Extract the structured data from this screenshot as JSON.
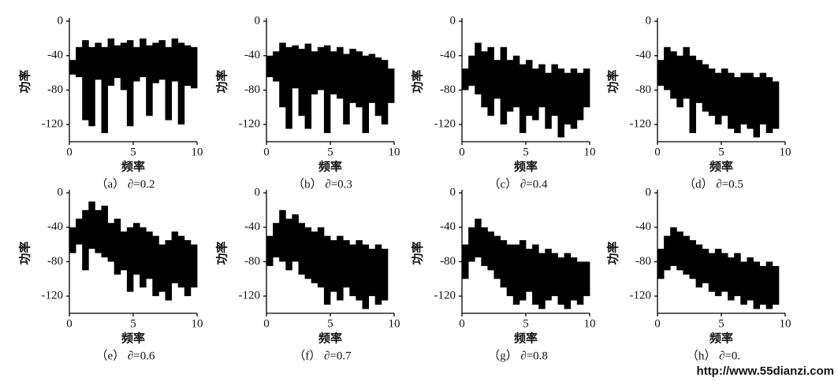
{
  "chart_data": [
    {
      "type": "band",
      "caption": "（a） ∂=0.2",
      "xlabel": "频率",
      "ylabel": "功率",
      "color": "#000000",
      "x": [
        0,
        0.5,
        1,
        1.5,
        2,
        2.5,
        3,
        3.5,
        4,
        4.5,
        5,
        5.5,
        6,
        6.5,
        7,
        7.5,
        8,
        8.5,
        9,
        9.5
      ],
      "high": [
        -45,
        -30,
        -22,
        -30,
        -25,
        -30,
        -20,
        -28,
        -25,
        -22,
        -30,
        -20,
        -28,
        -25,
        -22,
        -30,
        -20,
        -25,
        -28,
        -30
      ],
      "low": [
        -62,
        -65,
        -115,
        -122,
        -68,
        -130,
        -75,
        -66,
        -80,
        -122,
        -70,
        -65,
        -110,
        -72,
        -68,
        -115,
        -70,
        -120,
        -75,
        -78
      ],
      "xlim": [
        0,
        10
      ],
      "ylim": [
        -140,
        0
      ],
      "xticks": [
        0,
        5,
        10
      ],
      "yticks": [
        0,
        -40,
        -80,
        -120
      ]
    },
    {
      "type": "band",
      "caption": "（b） ∂=0.3",
      "xlabel": "频率",
      "ylabel": "功率",
      "color": "#000000",
      "x": [
        0,
        0.5,
        1,
        1.5,
        2,
        2.5,
        3,
        3.5,
        4,
        4.5,
        5,
        5.5,
        6,
        6.5,
        7,
        7.5,
        8,
        8.5,
        9,
        9.5
      ],
      "high": [
        -40,
        -35,
        -25,
        -30,
        -28,
        -32,
        -26,
        -35,
        -30,
        -28,
        -35,
        -30,
        -38,
        -32,
        -35,
        -40,
        -38,
        -42,
        -45,
        -55
      ],
      "low": [
        -65,
        -70,
        -100,
        -125,
        -78,
        -110,
        -125,
        -85,
        -80,
        -130,
        -85,
        -90,
        -120,
        -95,
        -100,
        -130,
        -95,
        -110,
        -120,
        -95
      ],
      "xlim": [
        0,
        10
      ],
      "ylim": [
        -140,
        0
      ],
      "xticks": [
        0,
        5,
        10
      ],
      "yticks": [
        0,
        -40,
        -80,
        -120
      ]
    },
    {
      "type": "band",
      "caption": "（c） ∂=0.4",
      "xlabel": "频率",
      "ylabel": "功率",
      "color": "#000000",
      "x": [
        0,
        0.5,
        1,
        1.5,
        2,
        2.5,
        3,
        3.5,
        4,
        4.5,
        5,
        5.5,
        6,
        6.5,
        7,
        7.5,
        8,
        8.5,
        9,
        9.5
      ],
      "high": [
        -55,
        -40,
        -25,
        -35,
        -30,
        -45,
        -30,
        -45,
        -40,
        -50,
        -45,
        -55,
        -50,
        -60,
        -50,
        -55,
        -60,
        -55,
        -60,
        -55
      ],
      "low": [
        -80,
        -75,
        -85,
        -100,
        -110,
        -90,
        -120,
        -105,
        -100,
        -130,
        -110,
        -115,
        -100,
        -125,
        -110,
        -135,
        -120,
        -125,
        -115,
        -100
      ],
      "xlim": [
        0,
        10
      ],
      "ylim": [
        -140,
        0
      ],
      "xticks": [
        0,
        5,
        10
      ],
      "yticks": [
        0,
        -40,
        -80,
        -120
      ]
    },
    {
      "type": "band",
      "caption": "（d） ∂=0.5",
      "xlabel": "频率",
      "ylabel": "功率",
      "color": "#000000",
      "x": [
        0,
        0.5,
        1,
        1.5,
        2,
        2.5,
        3,
        3.5,
        4,
        4.5,
        5,
        5.5,
        6,
        6.5,
        7,
        7.5,
        8,
        8.5,
        9
      ],
      "high": [
        -45,
        -30,
        -35,
        -40,
        -30,
        -40,
        -45,
        -50,
        -55,
        -60,
        -55,
        -60,
        -65,
        -60,
        -60,
        -65,
        -60,
        -65,
        -70
      ],
      "low": [
        -75,
        -80,
        -90,
        -100,
        -90,
        -130,
        -95,
        -105,
        -110,
        -120,
        -110,
        -125,
        -130,
        -120,
        -125,
        -135,
        -120,
        -130,
        -125
      ],
      "xlim": [
        0,
        10
      ],
      "ylim": [
        -140,
        0
      ],
      "xticks": [
        0,
        5,
        10
      ],
      "yticks": [
        0,
        -40,
        -80,
        -120
      ]
    },
    {
      "type": "band",
      "caption": "（e） ∂=0.6",
      "xlabel": "频率",
      "ylabel": "功率",
      "color": "#000000",
      "x": [
        0,
        0.5,
        1,
        1.5,
        2,
        2.5,
        3,
        3.5,
        4,
        4.5,
        5,
        5.5,
        6,
        6.5,
        7,
        7.5,
        8,
        8.5,
        9,
        9.5
      ],
      "high": [
        -40,
        -30,
        -20,
        -10,
        -20,
        -15,
        -35,
        -30,
        -45,
        -40,
        -35,
        -40,
        -45,
        -50,
        -60,
        -55,
        -45,
        -50,
        -55,
        -60
      ],
      "low": [
        -70,
        -60,
        -90,
        -65,
        -70,
        -75,
        -80,
        -95,
        -90,
        -115,
        -95,
        -110,
        -100,
        -120,
        -115,
        -125,
        -105,
        -110,
        -120,
        -110
      ],
      "xlim": [
        0,
        10
      ],
      "ylim": [
        -140,
        0
      ],
      "xticks": [
        0,
        5,
        10
      ],
      "yticks": [
        0,
        -40,
        -80,
        -120
      ]
    },
    {
      "type": "band",
      "caption": "（f） ∂=0.7",
      "xlabel": "频率",
      "ylabel": "功率",
      "color": "#000000",
      "x": [
        0,
        0.5,
        1,
        1.5,
        2,
        2.5,
        3,
        3.5,
        4,
        4.5,
        5,
        5.5,
        6,
        6.5,
        7,
        7.5,
        8,
        8.5,
        9
      ],
      "high": [
        -50,
        -35,
        -20,
        -30,
        -25,
        -35,
        -40,
        -45,
        -40,
        -50,
        -55,
        -50,
        -55,
        -60,
        -55,
        -60,
        -65,
        -60,
        -65
      ],
      "low": [
        -85,
        -75,
        -80,
        -90,
        -80,
        -95,
        -100,
        -105,
        -110,
        -130,
        -115,
        -125,
        -110,
        -120,
        -125,
        -135,
        -120,
        -130,
        -125
      ],
      "xlim": [
        0,
        10
      ],
      "ylim": [
        -140,
        0
      ],
      "xticks": [
        0,
        5,
        10
      ],
      "yticks": [
        0,
        -40,
        -80,
        -120
      ]
    },
    {
      "type": "band",
      "caption": "（g） ∂=0.8",
      "xlabel": "频率",
      "ylabel": "功率",
      "color": "#000000",
      "x": [
        0,
        0.5,
        1,
        1.5,
        2,
        2.5,
        3,
        3.5,
        4,
        4.5,
        5,
        5.5,
        6,
        6.5,
        7,
        7.5,
        8,
        8.5,
        9,
        9.5
      ],
      "high": [
        -60,
        -40,
        -30,
        -40,
        -45,
        -50,
        -55,
        -60,
        -60,
        -55,
        -65,
        -60,
        -70,
        -65,
        -70,
        -75,
        -70,
        -75,
        -80,
        -80
      ],
      "low": [
        -100,
        -80,
        -75,
        -85,
        -90,
        -100,
        -110,
        -120,
        -130,
        -125,
        -115,
        -130,
        -135,
        -125,
        -120,
        -130,
        -135,
        -125,
        -130,
        -120
      ],
      "xlim": [
        0,
        10
      ],
      "ylim": [
        -140,
        0
      ],
      "xticks": [
        0,
        5,
        10
      ],
      "yticks": [
        0,
        -40,
        -80,
        -120
      ]
    },
    {
      "type": "band",
      "caption": "（h） ∂=0.",
      "xlabel": "频率",
      "ylabel": "功率",
      "color": "#000000",
      "x": [
        0,
        0.5,
        1,
        1.5,
        2,
        2.5,
        3,
        3.5,
        4,
        4.5,
        5,
        5.5,
        6,
        6.5,
        7,
        7.5,
        8,
        8.5,
        9
      ],
      "high": [
        -65,
        -50,
        -40,
        -45,
        -50,
        -55,
        -60,
        -65,
        -70,
        -65,
        -70,
        -75,
        -70,
        -80,
        -75,
        -80,
        -85,
        -80,
        -85
      ],
      "low": [
        -100,
        -90,
        -85,
        -90,
        -95,
        -100,
        -110,
        -105,
        -115,
        -120,
        -115,
        -125,
        -120,
        -130,
        -125,
        -135,
        -130,
        -135,
        -130
      ],
      "xlim": [
        0,
        10
      ],
      "ylim": [
        -140,
        0
      ],
      "xticks": [
        0,
        5,
        10
      ],
      "yticks": [
        0,
        -40,
        -80,
        -120
      ],
      "watermark": "http://www.55dianzi.com"
    }
  ]
}
